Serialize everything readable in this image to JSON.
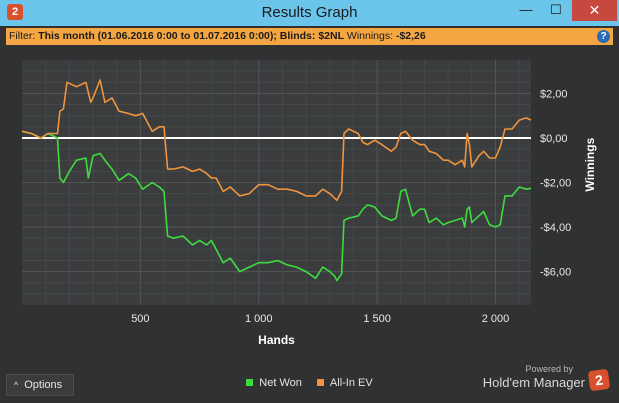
{
  "window": {
    "title": "Results Graph",
    "minimize": "—",
    "maximize": "☐",
    "close": "✕"
  },
  "filter": {
    "label": "Filter:",
    "period": "This month (01.06.2016 0:00 to 01.07.2016 0:00);",
    "blinds_label": "Blinds:",
    "blinds_value": "$2NL",
    "winnings_label": "Winnings:",
    "winnings_value": "-$2,26"
  },
  "footer": {
    "options_label": "Options",
    "powered_by": "Powered by",
    "brand": "Hold'em Manager"
  },
  "colors": {
    "net_won": "#3edc3e",
    "all_in_ev": "#f0943e",
    "zero_line": "#ffffff"
  },
  "chart_data": {
    "type": "line",
    "xlabel": "Hands",
    "ylabel": "Winnings",
    "xlim": [
      0,
      2150
    ],
    "ylim": [
      -7.5,
      3.5
    ],
    "x_ticks": [
      {
        "v": 500,
        "label": "500"
      },
      {
        "v": 1000,
        "label": "1 000"
      },
      {
        "v": 1500,
        "label": "1 500"
      },
      {
        "v": 2000,
        "label": "2 000"
      }
    ],
    "y_ticks": [
      {
        "v": 2,
        "label": "$2,00"
      },
      {
        "v": 0,
        "label": "$0,00"
      },
      {
        "v": -2,
        "label": "-$2,00"
      },
      {
        "v": -4,
        "label": "-$4,00"
      },
      {
        "v": -6,
        "label": "-$6,00"
      }
    ],
    "grid": true,
    "legend": "bottom",
    "series": [
      {
        "name": "Net Won",
        "color": "#3edc3e",
        "points": [
          [
            0,
            0.3
          ],
          [
            40,
            0.2
          ],
          [
            80,
            0.0
          ],
          [
            110,
            0.2
          ],
          [
            150,
            0.0
          ],
          [
            160,
            -1.8
          ],
          [
            175,
            -2.0
          ],
          [
            200,
            -1.5
          ],
          [
            230,
            -1.0
          ],
          [
            270,
            -0.9
          ],
          [
            280,
            -1.8
          ],
          [
            300,
            -0.8
          ],
          [
            330,
            -0.7
          ],
          [
            350,
            -1.0
          ],
          [
            380,
            -1.4
          ],
          [
            410,
            -1.9
          ],
          [
            450,
            -1.6
          ],
          [
            480,
            -1.8
          ],
          [
            510,
            -2.3
          ],
          [
            550,
            -2.0
          ],
          [
            580,
            -2.2
          ],
          [
            600,
            -2.4
          ],
          [
            615,
            -4.4
          ],
          [
            640,
            -4.5
          ],
          [
            680,
            -4.4
          ],
          [
            720,
            -4.8
          ],
          [
            750,
            -4.6
          ],
          [
            780,
            -4.8
          ],
          [
            800,
            -4.6
          ],
          [
            820,
            -5.0
          ],
          [
            850,
            -5.6
          ],
          [
            880,
            -5.4
          ],
          [
            920,
            -6.0
          ],
          [
            960,
            -5.8
          ],
          [
            1000,
            -5.6
          ],
          [
            1040,
            -5.6
          ],
          [
            1080,
            -5.5
          ],
          [
            1120,
            -5.7
          ],
          [
            1160,
            -5.8
          ],
          [
            1200,
            -6.0
          ],
          [
            1240,
            -6.3
          ],
          [
            1270,
            -5.8
          ],
          [
            1300,
            -6.0
          ],
          [
            1320,
            -6.2
          ],
          [
            1330,
            -6.4
          ],
          [
            1350,
            -6.1
          ],
          [
            1360,
            -3.7
          ],
          [
            1380,
            -3.6
          ],
          [
            1420,
            -3.5
          ],
          [
            1440,
            -3.2
          ],
          [
            1460,
            -3.0
          ],
          [
            1490,
            -3.1
          ],
          [
            1520,
            -3.5
          ],
          [
            1560,
            -3.7
          ],
          [
            1580,
            -3.6
          ],
          [
            1600,
            -2.4
          ],
          [
            1620,
            -2.3
          ],
          [
            1650,
            -3.5
          ],
          [
            1680,
            -3.2
          ],
          [
            1700,
            -3.2
          ],
          [
            1720,
            -3.8
          ],
          [
            1750,
            -3.6
          ],
          [
            1780,
            -3.9
          ],
          [
            1800,
            -3.8
          ],
          [
            1830,
            -3.7
          ],
          [
            1860,
            -3.6
          ],
          [
            1870,
            -4.0
          ],
          [
            1880,
            -3.2
          ],
          [
            1890,
            -3.1
          ],
          [
            1900,
            -3.8
          ],
          [
            1930,
            -3.5
          ],
          [
            1950,
            -3.3
          ],
          [
            1975,
            -3.9
          ],
          [
            2000,
            -4.0
          ],
          [
            2020,
            -3.9
          ],
          [
            2040,
            -2.6
          ],
          [
            2070,
            -2.6
          ],
          [
            2100,
            -2.2
          ],
          [
            2130,
            -2.3
          ],
          [
            2150,
            -2.26
          ]
        ]
      },
      {
        "name": "All-In EV",
        "color": "#f0943e",
        "points": [
          [
            0,
            0.3
          ],
          [
            40,
            0.2
          ],
          [
            80,
            0.0
          ],
          [
            110,
            0.2
          ],
          [
            150,
            0.2
          ],
          [
            160,
            1.2
          ],
          [
            175,
            1.3
          ],
          [
            190,
            2.5
          ],
          [
            230,
            2.3
          ],
          [
            270,
            2.5
          ],
          [
            290,
            1.6
          ],
          [
            300,
            1.8
          ],
          [
            330,
            2.6
          ],
          [
            350,
            1.6
          ],
          [
            380,
            1.8
          ],
          [
            410,
            1.2
          ],
          [
            450,
            1.1
          ],
          [
            480,
            1.0
          ],
          [
            510,
            1.1
          ],
          [
            550,
            0.3
          ],
          [
            580,
            0.5
          ],
          [
            600,
            0.5
          ],
          [
            615,
            -1.4
          ],
          [
            640,
            -1.4
          ],
          [
            680,
            -1.3
          ],
          [
            720,
            -1.5
          ],
          [
            750,
            -1.4
          ],
          [
            780,
            -1.6
          ],
          [
            800,
            -1.8
          ],
          [
            820,
            -1.8
          ],
          [
            850,
            -2.4
          ],
          [
            880,
            -2.2
          ],
          [
            920,
            -2.6
          ],
          [
            960,
            -2.5
          ],
          [
            1000,
            -2.1
          ],
          [
            1040,
            -2.1
          ],
          [
            1080,
            -2.3
          ],
          [
            1120,
            -2.3
          ],
          [
            1160,
            -2.4
          ],
          [
            1200,
            -2.6
          ],
          [
            1240,
            -2.6
          ],
          [
            1270,
            -2.3
          ],
          [
            1300,
            -2.5
          ],
          [
            1320,
            -2.7
          ],
          [
            1330,
            -2.8
          ],
          [
            1350,
            -2.4
          ],
          [
            1360,
            0.2
          ],
          [
            1380,
            0.4
          ],
          [
            1420,
            0.2
          ],
          [
            1440,
            -0.2
          ],
          [
            1460,
            -0.3
          ],
          [
            1490,
            -0.1
          ],
          [
            1520,
            -0.3
          ],
          [
            1560,
            -0.6
          ],
          [
            1580,
            -0.4
          ],
          [
            1600,
            0.2
          ],
          [
            1620,
            0.3
          ],
          [
            1650,
            -0.1
          ],
          [
            1680,
            -0.3
          ],
          [
            1700,
            -0.3
          ],
          [
            1720,
            -0.6
          ],
          [
            1750,
            -0.7
          ],
          [
            1780,
            -1.0
          ],
          [
            1800,
            -1.0
          ],
          [
            1830,
            -1.2
          ],
          [
            1860,
            -1.0
          ],
          [
            1870,
            -1.3
          ],
          [
            1880,
            0.2
          ],
          [
            1890,
            -0.3
          ],
          [
            1900,
            -1.3
          ],
          [
            1930,
            -0.8
          ],
          [
            1950,
            -0.6
          ],
          [
            1975,
            -0.9
          ],
          [
            2000,
            -0.9
          ],
          [
            2020,
            -0.4
          ],
          [
            2040,
            0.4
          ],
          [
            2070,
            0.4
          ],
          [
            2100,
            0.8
          ],
          [
            2130,
            0.9
          ],
          [
            2150,
            0.8
          ]
        ]
      }
    ]
  }
}
